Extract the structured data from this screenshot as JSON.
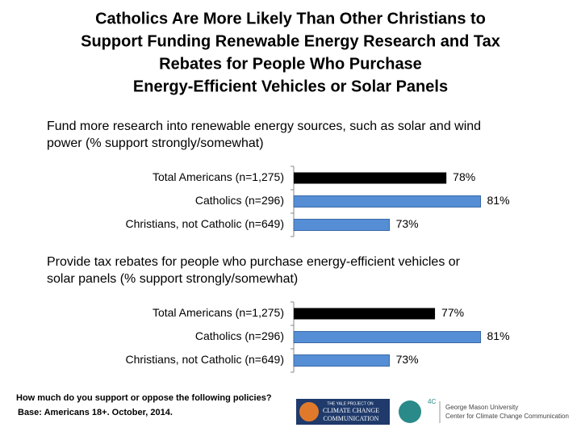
{
  "title_lines": [
    "Catholics Are More Likely Than Other Christians to",
    "Support Funding Renewable Energy Research and Tax",
    "Rebates for People Who Purchase",
    "Energy-Efficient Vehicles or Solar Panels"
  ],
  "chart_data": [
    {
      "type": "bar",
      "orientation": "horizontal",
      "subtitle_lines": [
        "Fund more research into renewable energy sources, such as solar and wind",
        "power (% support strongly/somewhat)"
      ],
      "categories": [
        "Total Americans (n=1,275)",
        "Catholics (n=296)",
        "Christians, not Catholic (n=649)"
      ],
      "values": [
        78,
        81,
        73
      ],
      "value_labels": [
        "78%",
        "81%",
        "73%"
      ],
      "colors": [
        "#000000",
        "#558ed5",
        "#558ed5"
      ],
      "xlim": [
        64.6,
        85
      ]
    },
    {
      "type": "bar",
      "orientation": "horizontal",
      "subtitle_lines": [
        "Provide tax rebates for people who purchase energy-efficient vehicles or",
        "solar panels (% support strongly/somewhat)"
      ],
      "categories": [
        "Total Americans (n=1,275)",
        "Catholics (n=296)",
        "Christians, not Catholic (n=649)"
      ],
      "values": [
        77,
        81,
        73
      ],
      "value_labels": [
        "77%",
        "81%",
        "73%"
      ],
      "colors": [
        "#000000",
        "#558ed5",
        "#558ed5"
      ],
      "xlim": [
        64.6,
        85
      ]
    }
  ],
  "footnotes": [
    "How much do you support or oppose the following policies?",
    "Base: Americans 18+. October, 2014."
  ],
  "logos": {
    "yale_small": "THE YALE PROJECT ON",
    "yale_main": "CLIMATE CHANGE",
    "yale_sub": "COMMUNICATION",
    "fourc": "4C",
    "gmu_line1": "George Mason University",
    "gmu_line2": "Center for Climate Change Communication"
  }
}
